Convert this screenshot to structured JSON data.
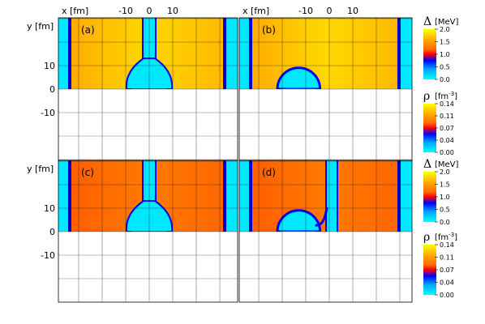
{
  "chart_data": {
    "type": "heatmap",
    "axes": {
      "xlabel": "x [fm]",
      "ylabel": "y [fm]",
      "xticks": [
        -10,
        0,
        10
      ],
      "xtick_labels": [
        "-10",
        "0",
        "10"
      ],
      "yticks": [
        10,
        0,
        -10
      ],
      "ytick_labels": [
        "10",
        "0",
        "-10"
      ],
      "grid": true
    },
    "colorbars": [
      {
        "symbol": "Δ",
        "unit": "[MeV]",
        "ticks": [
          "2.0",
          "1.5",
          "1.0",
          "0.5",
          "0.0"
        ],
        "range": [
          0.0,
          2.0
        ],
        "stops": [
          "#ffff00",
          "#ffb000",
          "#ff6a00",
          "#ff0000",
          "#0000ff",
          "#00a8ff",
          "#00ffff"
        ]
      },
      {
        "symbol": "ρ",
        "unit": "[fm",
        "unit_exp": "-3",
        "unit_close": "]",
        "ticks": [
          "0.14",
          "0.11",
          "0.07",
          "0.04",
          "0.00"
        ],
        "range": [
          0.0,
          0.14
        ],
        "stops": [
          "#ffff00",
          "#ffb000",
          "#ff6a00",
          "#ff0000",
          "#0000ff",
          "#00a8ff",
          "#00ffff"
        ]
      }
    ],
    "panels": [
      {
        "label": "(a)",
        "gap_level": "high",
        "nucleus_radius_fm": 7,
        "nucleus_center_fm": [
          0,
          0
        ],
        "gap_profile": "neck"
      },
      {
        "label": "(b)",
        "gap_level": "high",
        "nucleus_radius_fm": 7,
        "nucleus_center_fm": [
          -13,
          0
        ],
        "gap_profile": "dome"
      },
      {
        "label": "(c)",
        "gap_level": "medium",
        "nucleus_radius_fm": 7,
        "nucleus_center_fm": [
          0,
          0
        ],
        "gap_profile": "neck"
      },
      {
        "label": "(d)",
        "gap_level": "medium",
        "nucleus_radius_fm": 7,
        "nucleus_center_fm": [
          -13,
          0
        ],
        "gap_profile": "dome-hook"
      }
    ]
  }
}
